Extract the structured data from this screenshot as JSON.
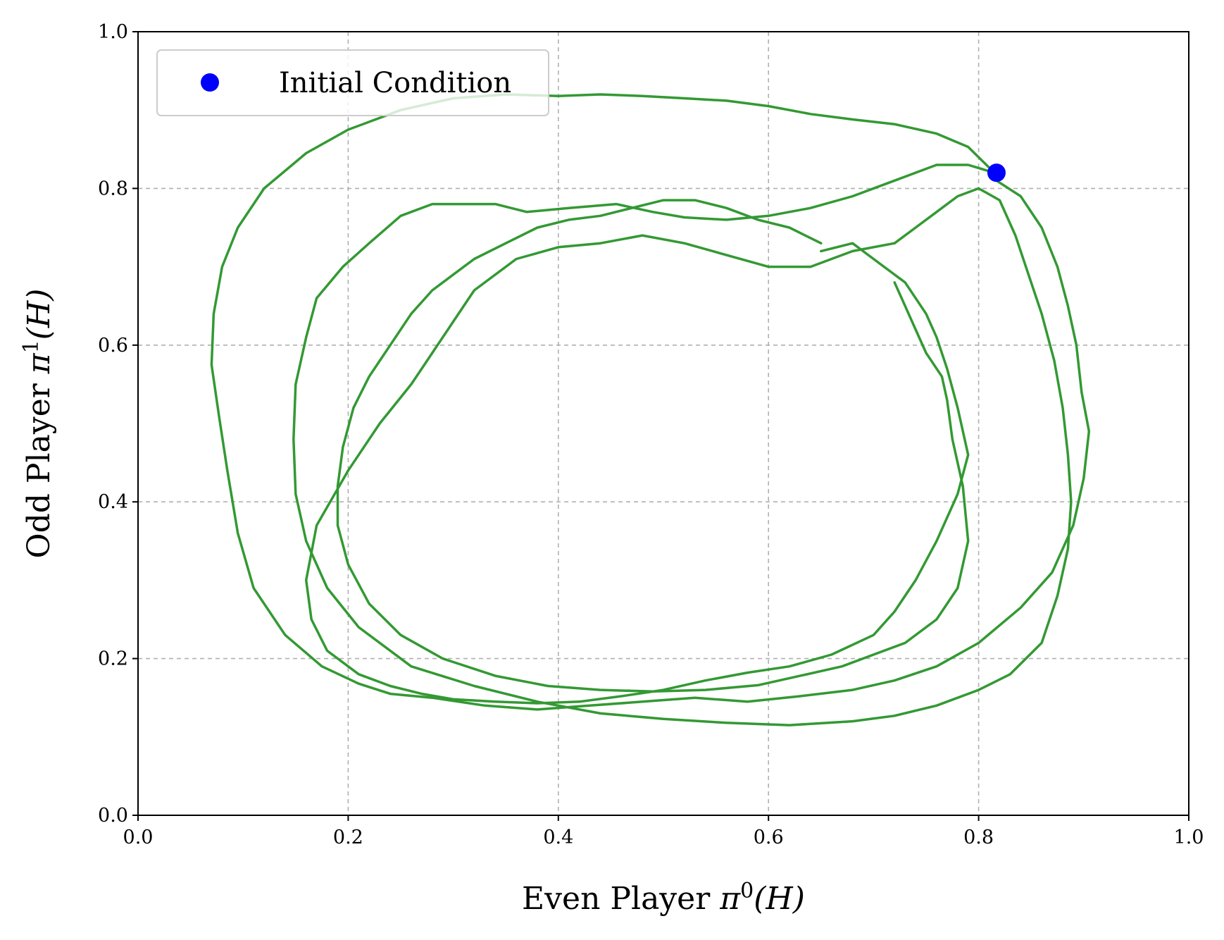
{
  "chart_data": {
    "type": "line",
    "title": "",
    "xlabel": "Even Player π⁰(H)",
    "xlabel_parts": {
      "text": "Even Player ",
      "symbol": "π",
      "sup": "0",
      "arg": "(H)"
    },
    "ylabel": "Odd Player π¹(H)",
    "ylabel_parts": {
      "text": "Odd Player ",
      "symbol": "π",
      "sup": "1",
      "arg": "(H)"
    },
    "xlim": [
      0.0,
      1.0
    ],
    "ylim": [
      0.0,
      1.0
    ],
    "xticks": [
      "0.0",
      "0.2",
      "0.4",
      "0.6",
      "0.8",
      "1.0"
    ],
    "yticks": [
      "0.0",
      "0.2",
      "0.4",
      "0.6",
      "0.8",
      "1.0"
    ],
    "grid": true,
    "legend_position": "top-left",
    "legend": [
      {
        "label": "Initial Condition",
        "marker": "circle",
        "color": "#0000ff"
      }
    ],
    "initial_condition": {
      "x": 0.817,
      "y": 0.82,
      "color": "#0000ff"
    },
    "series": [
      {
        "color": "#339933",
        "x": [
          0.817,
          0.84,
          0.86,
          0.875,
          0.885,
          0.893,
          0.898,
          0.905,
          0.9,
          0.89,
          0.87,
          0.84,
          0.8,
          0.76,
          0.72,
          0.68,
          0.63,
          0.58,
          0.53,
          0.48,
          0.43,
          0.38,
          0.33,
          0.28,
          0.24,
          0.21,
          0.175,
          0.14,
          0.11,
          0.095,
          0.085,
          0.077,
          0.07,
          0.072,
          0.08,
          0.095,
          0.12,
          0.16,
          0.2,
          0.25,
          0.3,
          0.35,
          0.4,
          0.44,
          0.48,
          0.52,
          0.56,
          0.6,
          0.64,
          0.68,
          0.72,
          0.76,
          0.79,
          0.815
        ],
        "y": [
          0.81,
          0.79,
          0.75,
          0.7,
          0.65,
          0.6,
          0.54,
          0.49,
          0.43,
          0.37,
          0.31,
          0.265,
          0.22,
          0.19,
          0.172,
          0.16,
          0.152,
          0.145,
          0.15,
          0.145,
          0.14,
          0.135,
          0.14,
          0.15,
          0.155,
          0.168,
          0.19,
          0.23,
          0.29,
          0.36,
          0.44,
          0.51,
          0.575,
          0.64,
          0.7,
          0.75,
          0.8,
          0.845,
          0.875,
          0.9,
          0.915,
          0.92,
          0.918,
          0.92,
          0.918,
          0.915,
          0.912,
          0.905,
          0.895,
          0.888,
          0.882,
          0.87,
          0.853,
          0.82
        ]
      },
      {
        "color": "#339933",
        "x": [
          0.815,
          0.79,
          0.76,
          0.72,
          0.68,
          0.64,
          0.6,
          0.56,
          0.52,
          0.49,
          0.455,
          0.41,
          0.37,
          0.34,
          0.31,
          0.28,
          0.25,
          0.22,
          0.195,
          0.17,
          0.16,
          0.15,
          0.148,
          0.15,
          0.16,
          0.18,
          0.21,
          0.26,
          0.32,
          0.38,
          0.44,
          0.5,
          0.56,
          0.62,
          0.68,
          0.72,
          0.76,
          0.8,
          0.83,
          0.86,
          0.875,
          0.885,
          0.888,
          0.885,
          0.88,
          0.872,
          0.86,
          0.845,
          0.835,
          0.82,
          0.8,
          0.78,
          0.76,
          0.74,
          0.72
        ],
        "y": [
          0.82,
          0.83,
          0.83,
          0.81,
          0.79,
          0.775,
          0.765,
          0.76,
          0.763,
          0.77,
          0.78,
          0.775,
          0.77,
          0.78,
          0.78,
          0.78,
          0.765,
          0.73,
          0.7,
          0.66,
          0.61,
          0.55,
          0.48,
          0.41,
          0.35,
          0.29,
          0.24,
          0.19,
          0.165,
          0.145,
          0.13,
          0.123,
          0.118,
          0.115,
          0.12,
          0.127,
          0.14,
          0.16,
          0.18,
          0.22,
          0.28,
          0.34,
          0.4,
          0.46,
          0.52,
          0.58,
          0.64,
          0.7,
          0.74,
          0.785,
          0.8,
          0.79,
          0.77,
          0.75,
          0.73
        ]
      },
      {
        "color": "#339933",
        "x": [
          0.72,
          0.68,
          0.64,
          0.6,
          0.56,
          0.52,
          0.48,
          0.44,
          0.4,
          0.36,
          0.32,
          0.3,
          0.28,
          0.26,
          0.23,
          0.2,
          0.17,
          0.16,
          0.165,
          0.18,
          0.21,
          0.24,
          0.27,
          0.3,
          0.34,
          0.38,
          0.42,
          0.46,
          0.5,
          0.54,
          0.58,
          0.62,
          0.66,
          0.7,
          0.72,
          0.74,
          0.76,
          0.78,
          0.79,
          0.78,
          0.77,
          0.76,
          0.75,
          0.73,
          0.71,
          0.69,
          0.68,
          0.65
        ],
        "y": [
          0.73,
          0.72,
          0.7,
          0.7,
          0.715,
          0.73,
          0.74,
          0.73,
          0.725,
          0.71,
          0.67,
          0.63,
          0.59,
          0.55,
          0.5,
          0.44,
          0.37,
          0.3,
          0.25,
          0.21,
          0.18,
          0.165,
          0.155,
          0.148,
          0.145,
          0.143,
          0.145,
          0.152,
          0.16,
          0.172,
          0.182,
          0.19,
          0.205,
          0.23,
          0.26,
          0.3,
          0.35,
          0.41,
          0.46,
          0.52,
          0.57,
          0.61,
          0.64,
          0.68,
          0.7,
          0.72,
          0.73,
          0.72
        ]
      },
      {
        "color": "#339933",
        "x": [
          0.65,
          0.62,
          0.59,
          0.56,
          0.53,
          0.5,
          0.47,
          0.44,
          0.41,
          0.38,
          0.35,
          0.32,
          0.3,
          0.28,
          0.26,
          0.24,
          0.22,
          0.205,
          0.195,
          0.19,
          0.19,
          0.2,
          0.22,
          0.25,
          0.29,
          0.34,
          0.39,
          0.44,
          0.49,
          0.54,
          0.59,
          0.63,
          0.67,
          0.7,
          0.73,
          0.76,
          0.78,
          0.79,
          0.785,
          0.775,
          0.77,
          0.765,
          0.75,
          0.74,
          0.73,
          0.72
        ],
        "y": [
          0.73,
          0.75,
          0.76,
          0.775,
          0.785,
          0.785,
          0.775,
          0.765,
          0.76,
          0.75,
          0.73,
          0.71,
          0.69,
          0.67,
          0.64,
          0.6,
          0.56,
          0.52,
          0.47,
          0.42,
          0.37,
          0.32,
          0.27,
          0.23,
          0.2,
          0.178,
          0.165,
          0.16,
          0.158,
          0.16,
          0.166,
          0.178,
          0.19,
          0.205,
          0.22,
          0.25,
          0.29,
          0.35,
          0.42,
          0.48,
          0.53,
          0.56,
          0.59,
          0.62,
          0.65,
          0.68
        ]
      }
    ]
  }
}
